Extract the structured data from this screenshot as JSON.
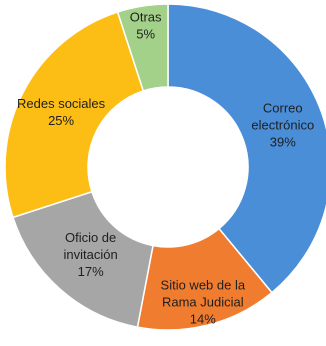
{
  "chart_data": {
    "type": "pie",
    "donut": true,
    "title": "",
    "series": [
      {
        "categories": [
          "Correo electrónico",
          "Sitio web de la Rama Judicial",
          "Oficio de invitación",
          "Redes sociales",
          "Otras"
        ],
        "values": [
          39,
          14,
          17,
          25,
          5
        ],
        "labels": [
          "39%",
          "14%",
          "17%",
          "25%",
          "5%"
        ],
        "colors": [
          "#4a8ed8",
          "#f07d2f",
          "#a6a6a6",
          "#fcbd14",
          "#a3d18a"
        ]
      }
    ],
    "legend": "none"
  }
}
